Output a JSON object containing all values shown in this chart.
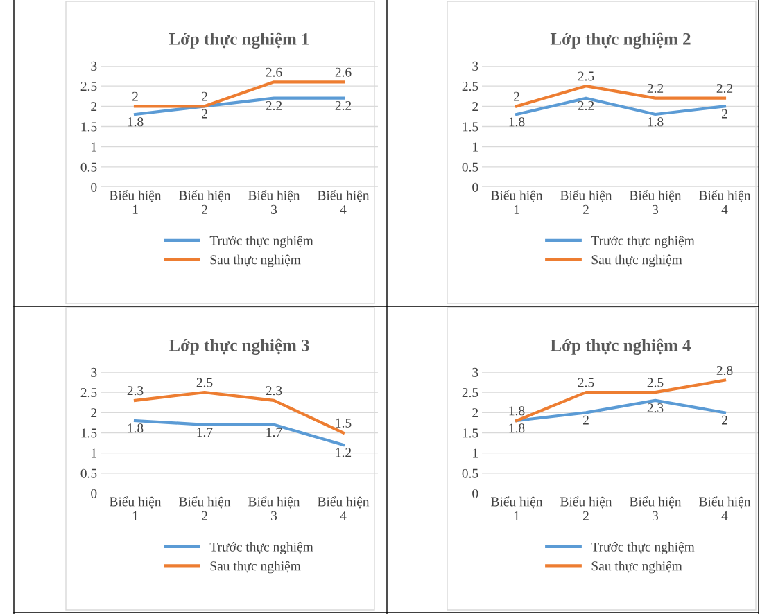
{
  "chart_data": [
    {
      "type": "line",
      "title": "Lớp thực nghiệm 1",
      "categories": [
        "Biểu hiện 1",
        "Biểu hiện 2",
        "Biểu hiện 3",
        "Biểu hiện 4"
      ],
      "series": [
        {
          "name": "Trước thực nghiệm",
          "color": "#5b9bd5",
          "values": [
            1.8,
            2,
            2.2,
            2.2
          ]
        },
        {
          "name": "Sau thực nghiệm",
          "color": "#ed7d31",
          "values": [
            2,
            2,
            2.6,
            2.6
          ]
        }
      ],
      "ylim": [
        0,
        3
      ],
      "yticks": [
        0,
        0.5,
        1,
        1.5,
        2,
        2.5,
        3
      ],
      "grid": "y",
      "legend": "bottom",
      "data_labels": true,
      "marker": "none",
      "line_style": "solid"
    },
    {
      "type": "line",
      "title": "Lớp thực nghiệm 2",
      "categories": [
        "Biểu hiện 1",
        "Biểu hiện 2",
        "Biểu hiện 3",
        "Biểu hiện 4"
      ],
      "series": [
        {
          "name": "Trước thực nghiệm",
          "color": "#5b9bd5",
          "values": [
            1.8,
            2.2,
            1.8,
            2
          ]
        },
        {
          "name": "Sau thực nghiệm",
          "color": "#ed7d31",
          "values": [
            2,
            2.5,
            2.2,
            2.2
          ]
        }
      ],
      "ylim": [
        0,
        3
      ],
      "yticks": [
        0,
        0.5,
        1,
        1.5,
        2,
        2.5,
        3
      ],
      "grid": "y",
      "legend": "bottom",
      "data_labels": true,
      "marker": "none",
      "line_style": "solid"
    },
    {
      "type": "line",
      "title": "Lớp thực nghiệm 3",
      "categories": [
        "Biểu hiện 1",
        "Biểu hiện 2",
        "Biểu hiện 3",
        "Biểu hiện 4"
      ],
      "series": [
        {
          "name": "Trước thực nghiệm",
          "color": "#5b9bd5",
          "values": [
            1.8,
            1.7,
            1.7,
            1.2
          ]
        },
        {
          "name": "Sau thực nghiệm",
          "color": "#ed7d31",
          "values": [
            2.3,
            2.5,
            2.3,
            1.5
          ]
        }
      ],
      "ylim": [
        0,
        3
      ],
      "yticks": [
        0,
        0.5,
        1,
        1.5,
        2,
        2.5,
        3
      ],
      "grid": "y",
      "legend": "bottom",
      "data_labels": true,
      "marker": "none",
      "line_style": "solid"
    },
    {
      "type": "line",
      "title": "Lớp thực nghiệm 4",
      "categories": [
        "Biểu hiện 1",
        "Biểu hiện 2",
        "Biểu hiện 3",
        "Biểu hiện 4"
      ],
      "series": [
        {
          "name": "Trước thực nghiệm",
          "color": "#5b9bd5",
          "values": [
            1.8,
            2,
            2.3,
            2
          ]
        },
        {
          "name": "Sau thực nghiệm",
          "color": "#ed7d31",
          "values": [
            1.8,
            2.5,
            2.5,
            2.8
          ]
        }
      ],
      "ylim": [
        0,
        3
      ],
      "yticks": [
        0,
        0.5,
        1,
        1.5,
        2,
        2.5,
        3
      ],
      "grid": "y",
      "legend": "bottom",
      "data_labels": true,
      "marker": "none",
      "line_style": "solid"
    }
  ]
}
